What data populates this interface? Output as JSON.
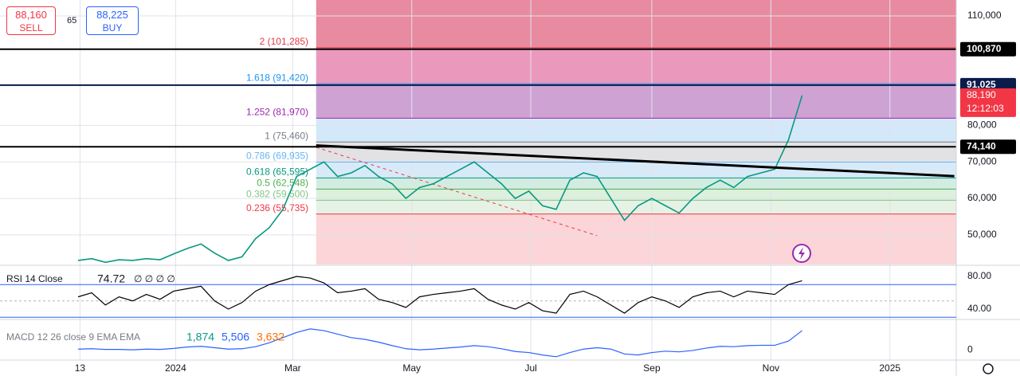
{
  "trade": {
    "sell": "88,160",
    "sell_label": "SELL",
    "spread": "65",
    "buy": "88,225",
    "buy_label": "BUY"
  },
  "chart_data": {
    "type": "line",
    "x": [
      -50,
      -43,
      -36,
      -29,
      -22,
      -15,
      -8,
      -1,
      6,
      13,
      20,
      27,
      34,
      41,
      48,
      55,
      62,
      69,
      76,
      83,
      90,
      97,
      104,
      111,
      118,
      125,
      132,
      139,
      146,
      153,
      160,
      167,
      174,
      181,
      188,
      195,
      202,
      209,
      216,
      223,
      230,
      237,
      244,
      251,
      258,
      265,
      272,
      279,
      286,
      293,
      300,
      307,
      314,
      321
    ],
    "series": [
      {
        "color": "#089981",
        "values": [
          43000,
          43500,
          42500,
          43200,
          43000,
          43500,
          43200,
          44800,
          46300,
          47500,
          45000,
          43000,
          44000,
          49000,
          52000,
          57000,
          66000,
          68000,
          70000,
          66000,
          67000,
          69000,
          66000,
          64000,
          60000,
          63000,
          64000,
          66000,
          68000,
          70000,
          67000,
          64000,
          60000,
          62000,
          58000,
          57000,
          65000,
          67000,
          66000,
          60000,
          54000,
          58000,
          60000,
          58000,
          56000,
          60000,
          63000,
          65000,
          63000,
          66000,
          67000,
          68000,
          76000,
          88190
        ]
      }
    ],
    "xlim": [
      -90,
      400
    ],
    "xticks": [
      {
        "value": -49,
        "label": "13"
      },
      {
        "value": 0,
        "label": "2024"
      },
      {
        "value": 60,
        "label": "Mar"
      },
      {
        "value": 121,
        "label": "May"
      },
      {
        "value": 182,
        "label": "Jul"
      },
      {
        "value": 244,
        "label": "Sep"
      },
      {
        "value": 305,
        "label": "Nov"
      },
      {
        "value": 366,
        "label": "2025"
      }
    ],
    "ylim": [
      41900,
      114360
    ],
    "yticks": [
      {
        "value": 50000,
        "label": "50,000"
      },
      {
        "value": 60000,
        "label": "60,000"
      },
      {
        "value": 70000,
        "label": "70,000"
      },
      {
        "value": 80000,
        "label": "80,000"
      },
      {
        "value": 110000,
        "label": "110,000"
      }
    ],
    "grid": true,
    "fib": {
      "start": 72,
      "top_color": "#e88aa0",
      "levels": [
        {
          "label": "2 (101,285)",
          "value": 101285,
          "color": "#e53945",
          "band": "#eb98bd"
        },
        {
          "label": "1.618 (91,420)",
          "value": 91420,
          "color": "#2196f3",
          "band": "#cfa2d4"
        },
        {
          "label": "1.252 (81,970)",
          "value": 81970,
          "color": "#9c27b0",
          "band": "#d3e8f8"
        },
        {
          "label": "1 (75,460)",
          "value": 75460,
          "color": "#787b86",
          "band": "#e2e2e4"
        },
        {
          "label": "0.786 (69,935)",
          "value": 69935,
          "color": "#64b5f6",
          "band": "#d8eaf8"
        },
        {
          "label": "0.618 (65,595)",
          "value": 65595,
          "color": "#089981",
          "band": "#d3ece2"
        },
        {
          "label": "0.5 (62,548)",
          "value": 62548,
          "color": "#4caf50",
          "band": "#ddefdd"
        },
        {
          "label": "0.382 (59,500)",
          "value": 59500,
          "color": "#81c784",
          "band": "#e5f2e5"
        },
        {
          "label": "0.236 (55,735)",
          "value": 55735,
          "color": "#f23645",
          "band": "#fbd5d7"
        }
      ]
    },
    "hlines": [
      {
        "value": 100870,
        "label": "100,870",
        "color": "#000000"
      },
      {
        "value": 91025,
        "label": "91,025",
        "color": "#0b1b4a"
      },
      {
        "value": 74140,
        "label": "74,140",
        "color": "#000000"
      }
    ],
    "trendline": {
      "x": [
        72,
        399
      ],
      "values": [
        74500,
        66100
      ]
    },
    "dashed": {
      "x": [
        72,
        216
      ],
      "values": [
        74000,
        49800
      ]
    },
    "last": {
      "value": 88190,
      "label": "88,190",
      "countdown": "12:12:03",
      "color": "#f23645"
    },
    "rsi": {
      "title": "RSI 14 Close",
      "value_label": "74.72",
      "extra": "∅ ∅ ∅ ∅",
      "color": "#000000",
      "values": [
        55,
        60,
        45,
        55,
        50,
        58,
        52,
        62,
        65,
        68,
        50,
        40,
        48,
        62,
        70,
        75,
        80,
        78,
        72,
        60,
        62,
        65,
        52,
        48,
        42,
        55,
        58,
        60,
        62,
        65,
        52,
        45,
        40,
        48,
        38,
        35,
        58,
        62,
        55,
        45,
        35,
        48,
        55,
        50,
        42,
        55,
        60,
        62,
        55,
        62,
        60,
        58,
        70,
        74.72
      ],
      "ylim": [
        28.3,
        91.7
      ],
      "yticks": [
        {
          "value": 80,
          "label": "80.00"
        },
        {
          "value": 40,
          "label": "40.00"
        }
      ],
      "levels": [
        70,
        50,
        30
      ]
    },
    "macd": {
      "title": "MACD 12 26 close 9 EMA EMA",
      "hist_label": "1,874",
      "macd_label": "5,506",
      "signal_label": "3,632",
      "color": "#2962ff",
      "values": [
        200,
        300,
        100,
        100,
        0,
        200,
        100,
        400,
        800,
        1000,
        600,
        200,
        300,
        900,
        2000,
        3500,
        5000,
        6000,
        5500,
        4500,
        3500,
        3000,
        2200,
        1200,
        300,
        0,
        200,
        500,
        800,
        1200,
        900,
        300,
        -500,
        -800,
        -1500,
        -2000,
        -800,
        200,
        600,
        200,
        -1200,
        -1500,
        -800,
        -400,
        -600,
        -200,
        500,
        1000,
        900,
        1200,
        1300,
        1300,
        2500,
        5506
      ],
      "ylim": [
        -2500,
        8500
      ],
      "yticks": [
        0
      ]
    }
  }
}
